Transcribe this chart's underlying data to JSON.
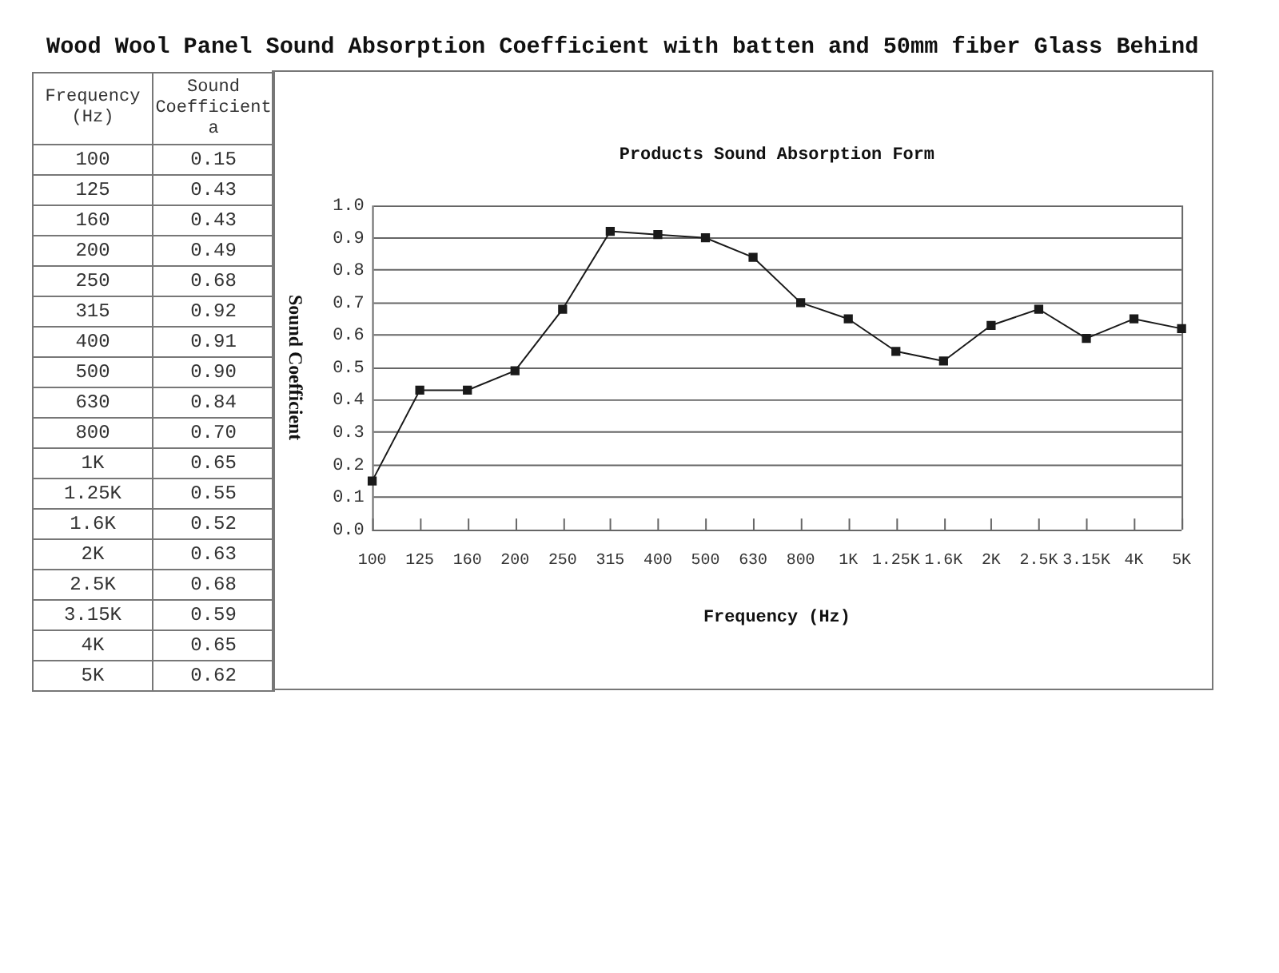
{
  "chart_data": [
    {
      "type": "other",
      "annotations": [
        "Frequency (Hz)",
        "Sound Coefficient a"
      ],
      "categories": [
        "100",
        "125",
        "160",
        "200",
        "250",
        "315",
        "400",
        "500",
        "630",
        "800",
        "1K",
        "1.25K",
        "1.6K",
        "2K",
        "2.5K",
        "3.15K",
        "4K",
        "5K"
      ],
      "values": [
        0.15,
        0.43,
        0.43,
        0.49,
        0.68,
        0.92,
        0.91,
        0.9,
        0.84,
        0.7,
        0.65,
        0.55,
        0.52,
        0.63,
        0.68,
        0.59,
        0.65,
        0.62
      ],
      "value_labels": [
        "0.15",
        "0.43",
        "0.43",
        "0.49",
        "0.68",
        "0.92",
        "0.91",
        "0.90",
        "0.84",
        "0.70",
        "0.65",
        "0.55",
        "0.52",
        "0.63",
        "0.68",
        "0.59",
        "0.65",
        "0.62"
      ]
    },
    {
      "type": "line",
      "title": "Wood Wool Panel Sound Absorption Coefficient with batten and 50mm fiber Glass Behind",
      "subtitle": "Products Sound Absorption Form",
      "xlabel": "Frequency (Hz)",
      "ylabel": "Sound Coefficient",
      "categories": [
        "100",
        "125",
        "160",
        "200",
        "250",
        "315",
        "400",
        "500",
        "630",
        "800",
        "1K",
        "1.25K",
        "1.6K",
        "2K",
        "2.5K",
        "3.15K",
        "4K",
        "5K"
      ],
      "values": [
        0.15,
        0.43,
        0.43,
        0.49,
        0.68,
        0.92,
        0.91,
        0.9,
        0.84,
        0.7,
        0.65,
        0.55,
        0.52,
        0.63,
        0.68,
        0.59,
        0.65,
        0.62
      ],
      "color": "#1a1a1a",
      "ylim": [
        0,
        1
      ],
      "yticks": [
        {
          "value": 0,
          "label": "0.0"
        },
        0.1,
        0.2,
        0.3,
        0.4,
        0.5,
        0.6,
        0.7,
        0.8,
        0.9,
        {
          "value": 1,
          "label": "1.0"
        }
      ],
      "grid": "y",
      "legend": false,
      "marker": "square",
      "line_style": "solid"
    }
  ]
}
